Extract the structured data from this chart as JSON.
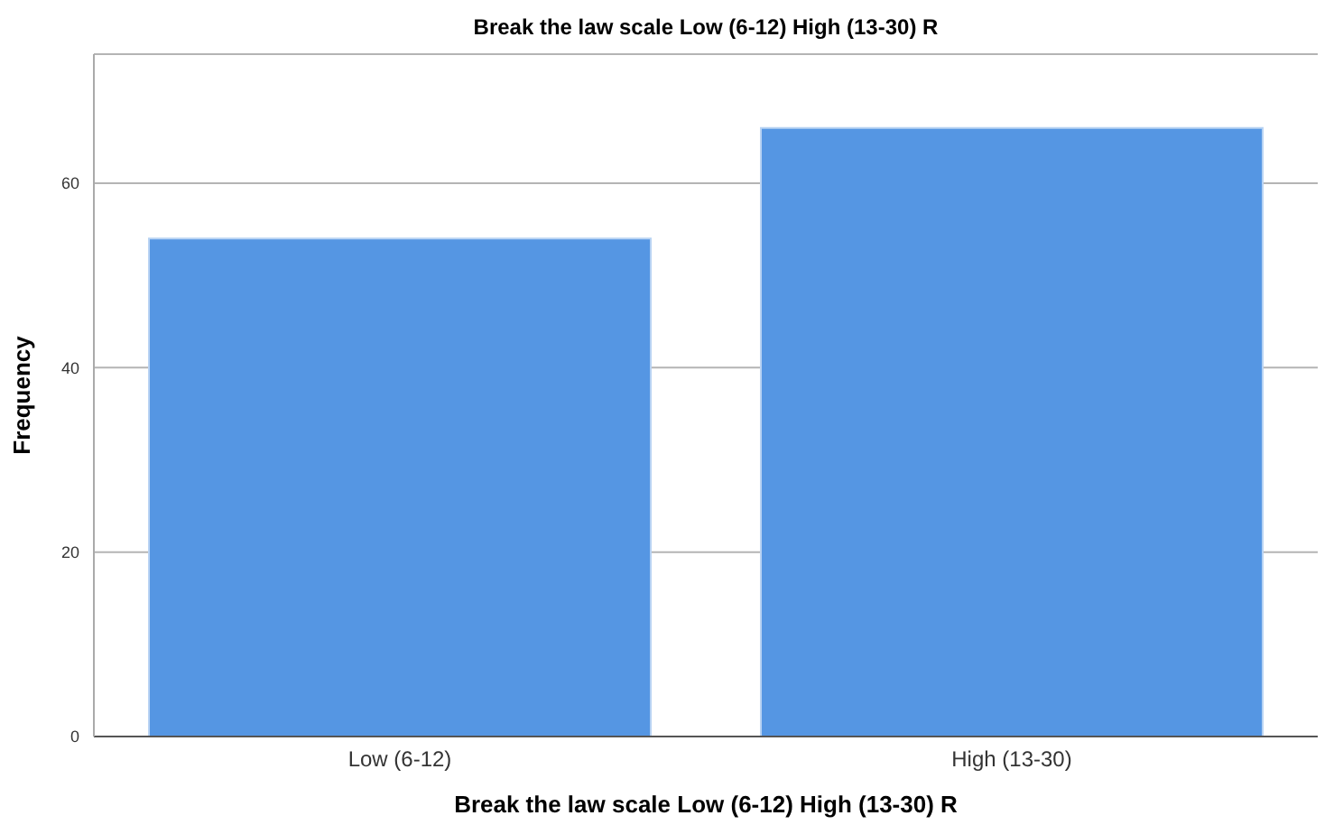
{
  "chart_data": {
    "type": "bar",
    "title": "Break the law scale Low (6-12) High (13-30) R",
    "xlabel": "Break the law scale Low (6-12) High (13-30) R",
    "ylabel": "Frequency",
    "categories": [
      "Low (6-12)",
      "High (13-30)"
    ],
    "values": [
      54,
      66
    ],
    "color": "#5596e3",
    "ylim": [
      0,
      74
    ],
    "yticks": [
      0,
      20,
      40,
      60
    ],
    "grid": "y"
  }
}
